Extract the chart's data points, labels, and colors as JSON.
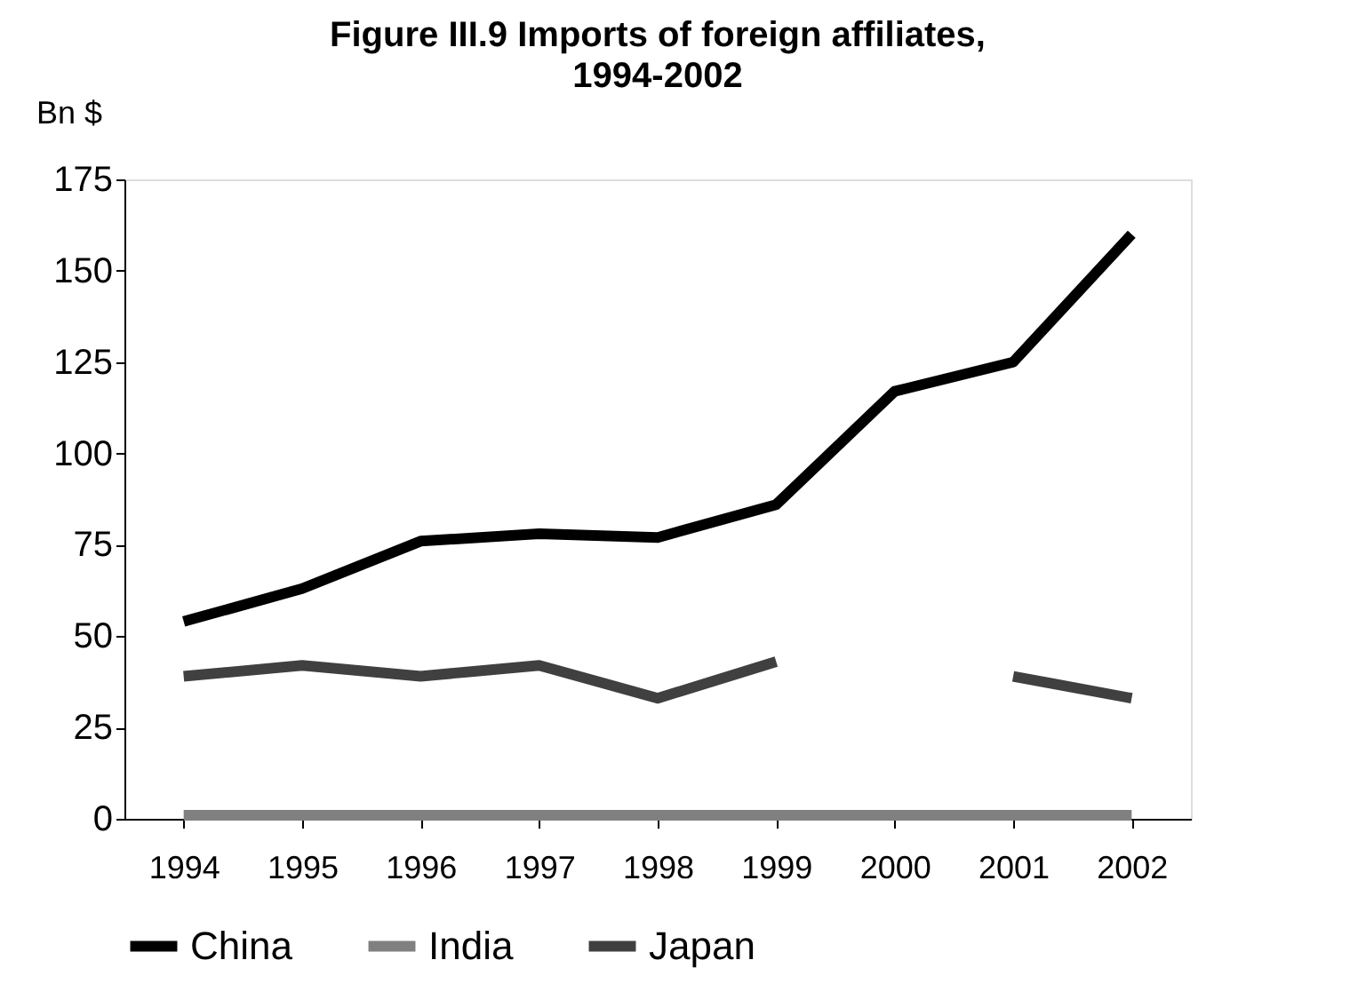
{
  "chart_data": {
    "type": "line",
    "title": "Figure III.9 Imports of foreign affiliates, 1994-2002",
    "ylabel": "Bn $",
    "categories": [
      "1994",
      "1995",
      "1996",
      "1997",
      "1998",
      "1999",
      "2000",
      "2001",
      "2002"
    ],
    "series": [
      {
        "name": "China",
        "color": "#000000",
        "values": [
          54,
          63,
          76,
          78,
          77,
          86,
          117,
          125,
          160
        ]
      },
      {
        "name": "India",
        "color": "#808080",
        "values": [
          1,
          1,
          1,
          1,
          1,
          1,
          1,
          1,
          1
        ]
      },
      {
        "name": "Japan",
        "color": "#404040",
        "values": [
          39,
          42,
          39,
          42,
          33,
          43,
          null,
          39,
          33
        ]
      }
    ],
    "ylim": [
      0,
      175
    ],
    "yticks": [
      0,
      25,
      50,
      75,
      100,
      125,
      150,
      175
    ],
    "grid": false,
    "legend": "bottom",
    "marker": "none",
    "line_style": "solid"
  }
}
